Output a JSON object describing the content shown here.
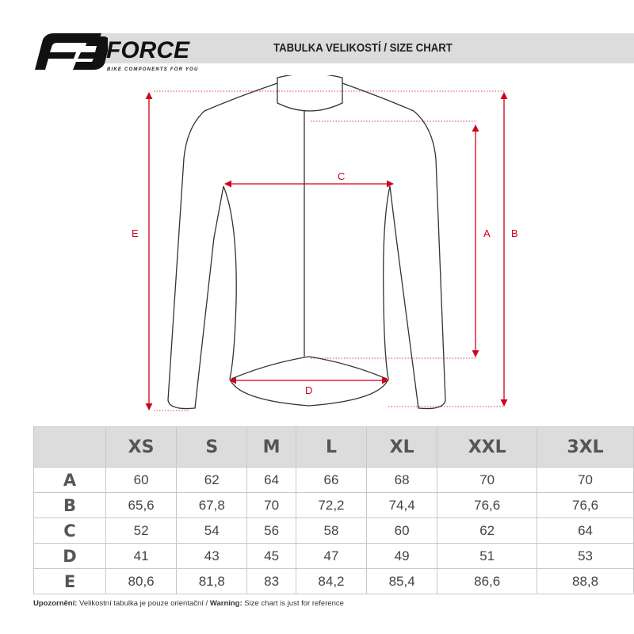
{
  "header": {
    "brand": "FORCE",
    "tagline": "BIKE COMPONENTS FOR YOU",
    "title": "TABULKA VELIKOSTÍ / SIZE CHART"
  },
  "diagram": {
    "labels": [
      "A",
      "B",
      "C",
      "D",
      "E"
    ],
    "accent_color": "#d0021b"
  },
  "table": {
    "columns": [
      "XS",
      "S",
      "M",
      "L",
      "XL",
      "XXL",
      "3XL"
    ],
    "rows": [
      {
        "label": "A",
        "values": [
          "60",
          "62",
          "64",
          "66",
          "68",
          "70",
          "70"
        ]
      },
      {
        "label": "B",
        "values": [
          "65,6",
          "67,8",
          "70",
          "72,2",
          "74,4",
          "76,6",
          "76,6"
        ]
      },
      {
        "label": "C",
        "values": [
          "52",
          "54",
          "56",
          "58",
          "60",
          "62",
          "64"
        ]
      },
      {
        "label": "D",
        "values": [
          "41",
          "43",
          "45",
          "47",
          "49",
          "51",
          "53"
        ]
      },
      {
        "label": "E",
        "values": [
          "80,6",
          "81,8",
          "83",
          "84,2",
          "85,4",
          "86,6",
          "88,8"
        ]
      }
    ]
  },
  "note": {
    "cz_label": "Upozornění:",
    "cz_text": " Velikostní tabulka je pouze orientační / ",
    "en_label": "Warning:",
    "en_text": " Size chart is just for reference"
  }
}
